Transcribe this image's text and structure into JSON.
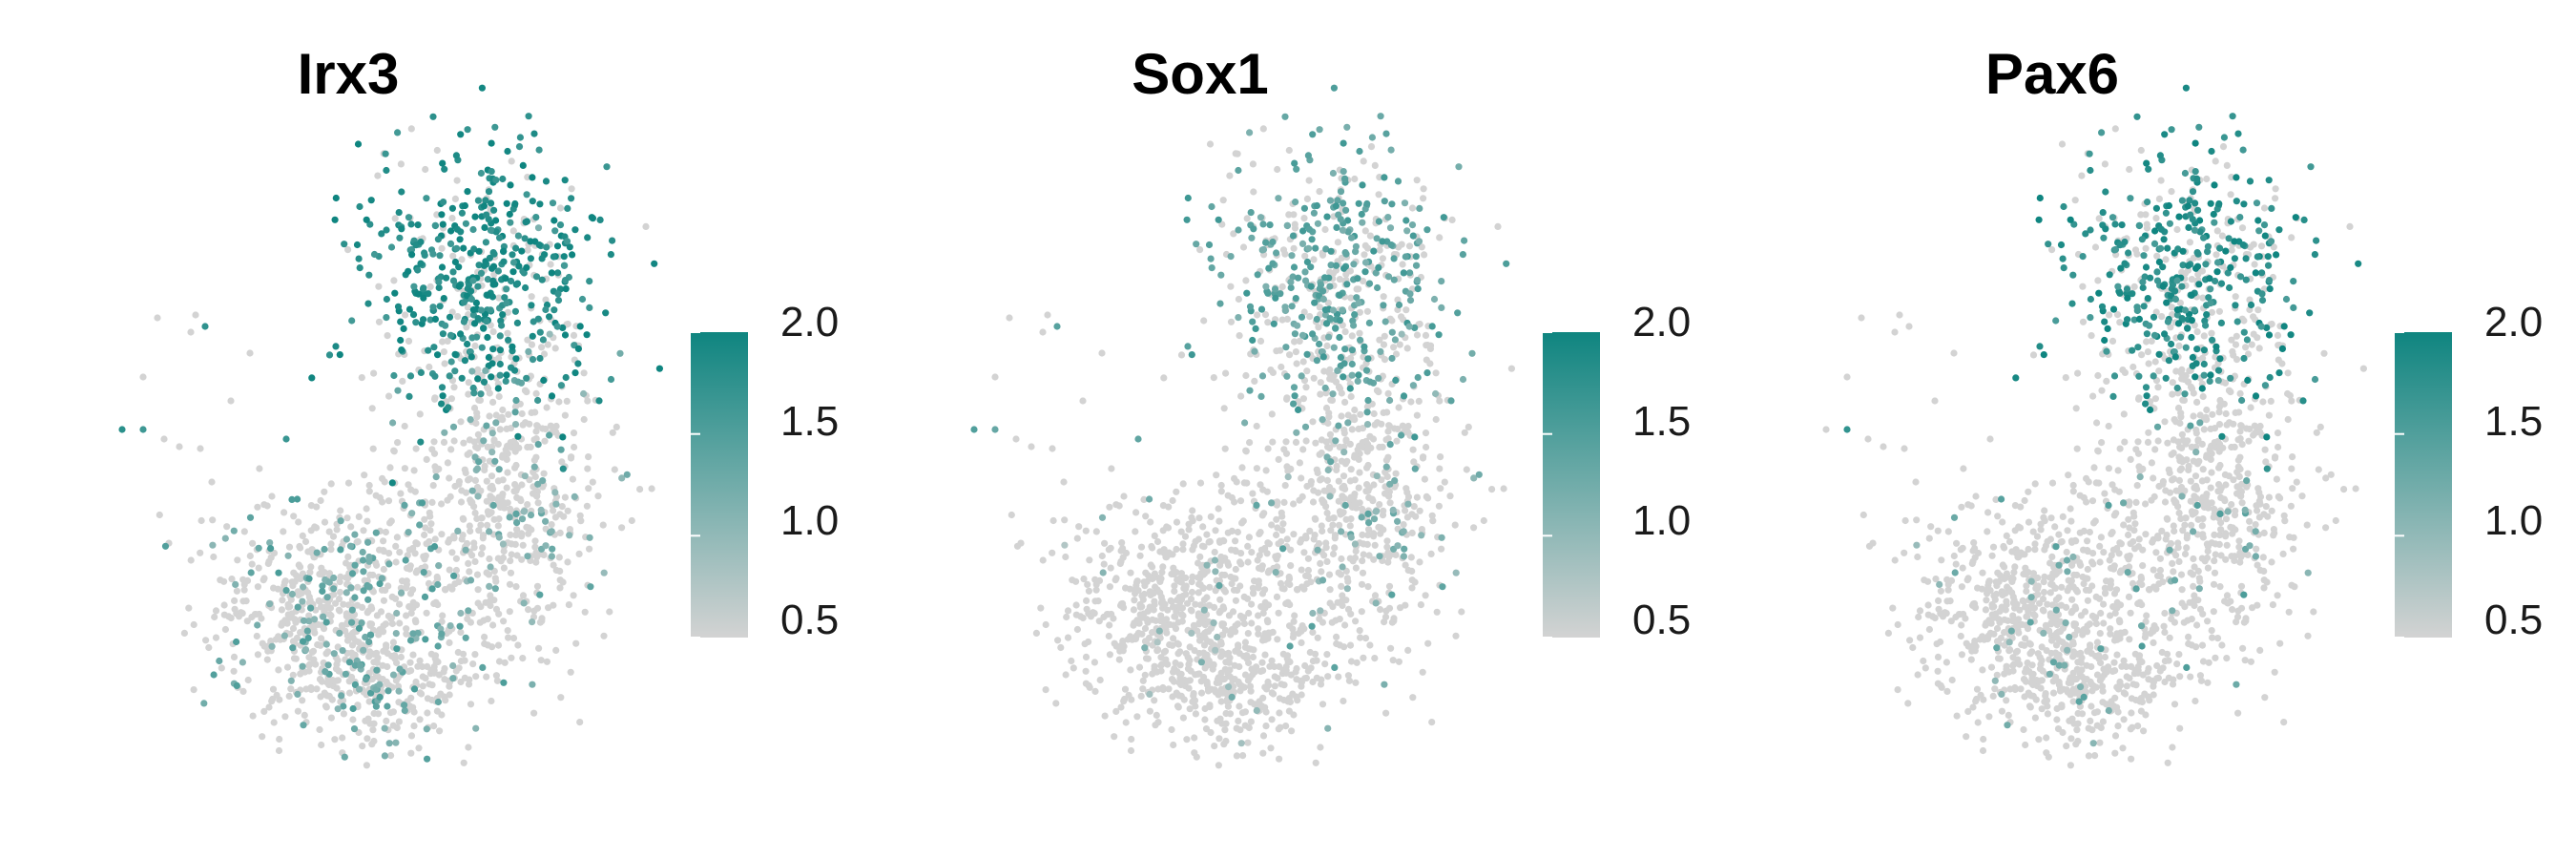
{
  "colors": {
    "low": "#d3d3d3",
    "high": "#0f8580"
  },
  "chart_data": [
    {
      "type": "scatter",
      "title": "Irx3",
      "colorbar": {
        "min": 0.5,
        "max": 2.0,
        "ticks": [
          "0.5",
          "1.0",
          "1.5",
          "2.0"
        ]
      },
      "expression_regions": [
        {
          "region": "top",
          "level": 1.85,
          "fraction": 0.8
        },
        {
          "region": "middle",
          "level": 1.2,
          "fraction": 0.12
        },
        {
          "region": "bottom-left",
          "level": 1.3,
          "fraction": 0.2
        },
        {
          "region": "outliers",
          "level": 1.6,
          "fraction": 0.15
        }
      ]
    },
    {
      "type": "scatter",
      "title": "Sox1",
      "colorbar": {
        "min": 0.5,
        "max": 2.0,
        "ticks": [
          "0.5",
          "1.0",
          "1.5",
          "2.0"
        ]
      },
      "expression_regions": [
        {
          "region": "top",
          "level": 1.4,
          "fraction": 0.55
        },
        {
          "region": "middle",
          "level": 1.2,
          "fraction": 0.1
        },
        {
          "region": "bottom-left",
          "level": 1.0,
          "fraction": 0.02
        },
        {
          "region": "outliers",
          "level": 1.3,
          "fraction": 0.1
        }
      ]
    },
    {
      "type": "scatter",
      "title": "Pax6",
      "colorbar": {
        "min": 0.5,
        "max": 2.0,
        "ticks": [
          "0.5",
          "1.0",
          "1.5",
          "2.0"
        ]
      },
      "expression_regions": [
        {
          "region": "top",
          "level": 1.8,
          "fraction": 0.6
        },
        {
          "region": "middle",
          "level": 1.3,
          "fraction": 0.05
        },
        {
          "region": "bottom-left",
          "level": 1.2,
          "fraction": 0.03
        },
        {
          "region": "outliers",
          "level": 1.7,
          "fraction": 0.08
        }
      ]
    }
  ]
}
